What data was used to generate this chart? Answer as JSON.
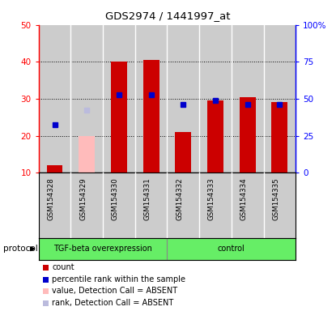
{
  "title": "GDS2974 / 1441997_at",
  "samples": [
    "GSM154328",
    "GSM154329",
    "GSM154330",
    "GSM154331",
    "GSM154332",
    "GSM154333",
    "GSM154334",
    "GSM154335"
  ],
  "bar_heights_red": [
    12,
    null,
    40,
    40.5,
    21,
    29.5,
    30.5,
    29
  ],
  "bar_heights_pink": [
    null,
    20,
    null,
    null,
    null,
    null,
    null,
    null
  ],
  "dot_blue": [
    23,
    null,
    31,
    31,
    28.5,
    29.5,
    28.5,
    28.5
  ],
  "dot_light_blue": [
    null,
    27,
    null,
    null,
    null,
    null,
    null,
    null
  ],
  "ylim_left": [
    10,
    50
  ],
  "ylim_right": [
    0,
    100
  ],
  "yticks_left": [
    10,
    20,
    30,
    40,
    50
  ],
  "yticks_right": [
    0,
    25,
    50,
    75,
    100
  ],
  "ytick_labels_left": [
    "10",
    "20",
    "30",
    "40",
    "50"
  ],
  "ytick_labels_right": [
    "0",
    "25",
    "50",
    "75",
    "100%"
  ],
  "groups": [
    {
      "label": "TGF-beta overexpression",
      "start": 0,
      "end": 4,
      "color": "#66ee66"
    },
    {
      "label": "control",
      "start": 4,
      "end": 8,
      "color": "#66ee66"
    }
  ],
  "sample_bg_color": "#cccccc",
  "bar_red_color": "#cc0000",
  "bar_pink_color": "#ffbbbb",
  "dot_blue_color": "#0000cc",
  "dot_light_blue_color": "#bbbbdd",
  "protocol_label": "protocol",
  "legend_items": [
    {
      "color": "#cc0000",
      "label": "count"
    },
    {
      "color": "#0000cc",
      "label": "percentile rank within the sample"
    },
    {
      "color": "#ffbbbb",
      "label": "value, Detection Call = ABSENT"
    },
    {
      "color": "#bbbbdd",
      "label": "rank, Detection Call = ABSENT"
    }
  ]
}
